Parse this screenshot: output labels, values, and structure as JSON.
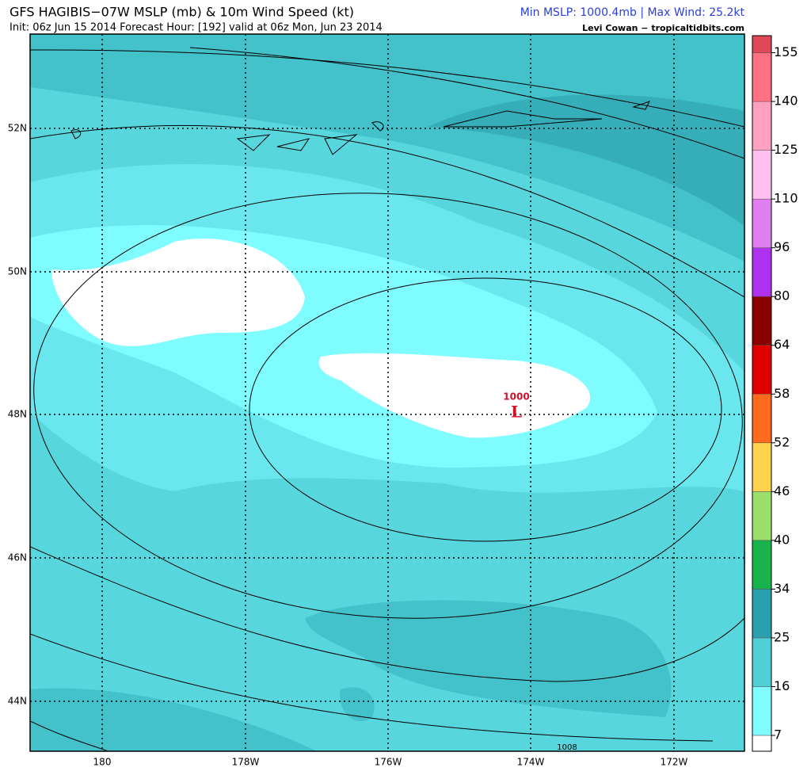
{
  "header": {
    "title": "GFS HAGIBIS−07W MSLP (mb) & 10m Wind Speed (kt)",
    "init": "Init: 06z Jun 15 2014 Forecast Hour: [192] valid at 06z Mon, Jun 23 2014",
    "stats": "Min MSLP: 1000.4mb | Max Wind: 25.2kt",
    "credit": "Levi Cowan − tropicaltidbits.com"
  },
  "map": {
    "lat_labels": [
      "52N",
      "50N",
      "48N",
      "46N",
      "44N"
    ],
    "lon_labels": [
      "180",
      "178W",
      "176W",
      "174W",
      "172W"
    ],
    "low_pressure": "1000",
    "low_symbol": "L",
    "contour_label": "1008"
  },
  "colorbar": {
    "labels": [
      "7",
      "16",
      "25",
      "34",
      "40",
      "46",
      "52",
      "58",
      "64",
      "80",
      "96",
      "110",
      "125",
      "140",
      "155"
    ],
    "colors": [
      "#ffffff",
      "#7ffcff",
      "#4fcfd6",
      "#2a9fae",
      "#19b34d",
      "#9be06a",
      "#ffd24d",
      "#ff6a1f",
      "#e00000",
      "#8a0000",
      "#b030f0",
      "#e080f0",
      "#ffc0f0",
      "#ffa0c0",
      "#ff7080",
      "#e04858",
      "#9b1c40"
    ]
  }
}
